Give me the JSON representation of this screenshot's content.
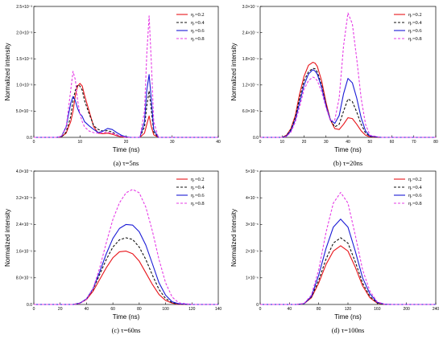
{
  "chart_data": [
    {
      "type": "line",
      "caption": "(a) τ=5ns",
      "xlabel": "Time (ns)",
      "ylabel": "Normalized intensity",
      "xlim": [
        0,
        40
      ],
      "ylim": [
        0,
        0.0025
      ],
      "xticks": [
        "0",
        "10",
        "20",
        "30",
        "40"
      ],
      "yticks": [
        "0.0",
        "5.0×10⁻⁴",
        "1.0×10⁻³",
        "1.5×10⁻³",
        "2.0×10⁻³",
        "2.5×10⁻³"
      ],
      "legend_position": "top-right",
      "series": [
        {
          "name": "ηᵣ=0.2",
          "color": "#e8141a",
          "dash": "solid",
          "x": [
            0,
            5,
            6,
            7,
            8,
            8.5,
            9,
            9.5,
            10,
            10.5,
            11,
            12,
            13,
            14,
            15,
            16,
            17,
            18,
            19,
            20,
            21,
            22,
            23,
            24,
            24.5,
            25,
            25.5,
            26,
            27,
            28,
            30,
            40
          ],
          "y": [
            0,
            0,
            1e-05,
            8e-05,
            0.0003,
            0.0005,
            0.0008,
            0.00098,
            0.00103,
            0.00098,
            0.0008,
            0.0005,
            0.0002,
            8e-05,
            7e-05,
            8e-05,
            6e-05,
            3e-05,
            1e-05,
            0,
            0,
            0,
            0,
            8e-05,
            0.00025,
            0.00041,
            0.0002,
            5e-05,
            0,
            0,
            0,
            0
          ]
        },
        {
          "name": "ηᵣ=0.4",
          "color": "#111111",
          "dash": "dashed",
          "x": [
            0,
            5,
            6,
            7,
            8,
            8.5,
            9,
            9.5,
            10,
            10.5,
            11,
            12,
            13,
            14,
            15,
            16,
            17,
            18,
            19,
            20,
            21,
            22,
            23,
            24,
            24.5,
            25,
            25.5,
            26,
            27,
            28,
            30,
            40
          ],
          "y": [
            0,
            0,
            1e-05,
            0.0001,
            0.0004,
            0.0007,
            0.0009,
            0.001,
            0.00098,
            0.0009,
            0.0007,
            0.00045,
            0.00022,
            0.00015,
            0.00012,
            0.00013,
            0.0001,
            5e-05,
            2e-05,
            0,
            0,
            0,
            0,
            0.0002,
            0.0006,
            0.00089,
            0.0005,
            0.0001,
            0,
            0,
            0,
            0
          ]
        },
        {
          "name": "ηᵣ=0.6",
          "color": "#1a1ad6",
          "dash": "solid",
          "x": [
            0,
            5,
            6,
            7,
            8,
            8.5,
            9,
            9.5,
            10,
            10.5,
            11,
            12,
            13,
            14,
            15,
            16,
            17,
            18,
            19,
            20,
            21,
            22,
            23,
            24,
            24.5,
            25,
            25.5,
            26,
            27,
            28,
            30,
            40
          ],
          "y": [
            0,
            0,
            2e-05,
            0.0002,
            0.00065,
            0.00078,
            0.0007,
            0.00055,
            0.00045,
            0.0004,
            0.0003,
            0.00022,
            0.00015,
            9e-05,
            0.00012,
            0.00017,
            0.00015,
            9e-05,
            4e-05,
            1e-05,
            0,
            0,
            0,
            0.0003,
            0.0009,
            0.0012,
            0.0007,
            0.00015,
            0,
            0,
            0,
            0
          ]
        },
        {
          "name": "ηᵣ=0.8",
          "color": "#e63ce6",
          "dash": "dashed",
          "x": [
            0,
            5,
            6,
            7,
            8,
            8.5,
            9,
            9.5,
            10,
            10.5,
            11,
            12,
            13,
            14,
            15,
            16,
            17,
            18,
            19,
            20,
            21,
            22,
            23,
            24,
            24.5,
            25,
            25.5,
            26,
            27,
            28,
            30,
            40
          ],
          "y": [
            0,
            0,
            2e-05,
            0.00018,
            0.0009,
            0.00126,
            0.0011,
            0.0007,
            0.00045,
            0.0003,
            0.0002,
            0.00012,
            9e-05,
            8e-05,
            9e-05,
            0.0001,
            8e-05,
            5e-05,
            2e-05,
            0,
            0,
            0,
            0,
            0.0005,
            0.0016,
            0.00232,
            0.0014,
            0.0003,
            0,
            0,
            0,
            0
          ]
        }
      ]
    },
    {
      "type": "line",
      "caption": "(b) τ=20ns",
      "xlabel": "Time (ns)",
      "ylabel": "Normalized intensity",
      "xlim": [
        0,
        80
      ],
      "ylim": [
        0,
        0.0003
      ],
      "xticks": [
        "0",
        "10",
        "20",
        "30",
        "40",
        "50",
        "60",
        "70",
        "80"
      ],
      "yticks": [
        "0.0",
        "6.0×10⁻⁵",
        "1.2×10⁻⁴",
        "1.8×10⁻⁴",
        "2.4×10⁻⁴",
        "3.0×10⁻⁴"
      ],
      "legend_position": "top-right",
      "series": [
        {
          "name": "ηᵣ=0.2",
          "color": "#e8141a",
          "dash": "solid",
          "x": [
            0,
            10,
            12,
            14,
            16,
            18,
            20,
            22,
            24,
            25,
            26,
            28,
            30,
            32,
            34,
            36,
            38,
            40,
            42,
            44,
            46,
            48,
            50,
            55,
            60,
            80
          ],
          "y": [
            0,
            0,
            5e-06,
            2e-05,
            5e-05,
            0.0001,
            0.00014,
            0.000165,
            0.000172,
            0.00017,
            0.000163,
            0.00013,
            8e-05,
            4e-05,
            2e-05,
            1.8e-05,
            3e-05,
            4.5e-05,
            4.3e-05,
            3e-05,
            1.5e-05,
            5e-06,
            1e-06,
            0,
            0,
            0
          ]
        },
        {
          "name": "ηᵣ=0.4",
          "color": "#111111",
          "dash": "dashed",
          "x": [
            0,
            10,
            12,
            14,
            16,
            18,
            20,
            22,
            24,
            25,
            26,
            28,
            30,
            32,
            34,
            36,
            38,
            40,
            42,
            44,
            46,
            48,
            50,
            55,
            60,
            80
          ],
          "y": [
            0,
            0,
            4e-06,
            1.8e-05,
            4.5e-05,
            9e-05,
            0.00013,
            0.00015,
            0.000158,
            0.000157,
            0.00015,
            0.00012,
            7.5e-05,
            4e-05,
            2.4e-05,
            3e-05,
            6e-05,
            8.8e-05,
            8.2e-05,
            5.8e-05,
            3e-05,
            1e-05,
            2e-06,
            0,
            0,
            0
          ]
        },
        {
          "name": "ηᵣ=0.6",
          "color": "#1a1ad6",
          "dash": "solid",
          "x": [
            0,
            10,
            12,
            14,
            16,
            18,
            20,
            22,
            24,
            25,
            26,
            28,
            30,
            32,
            34,
            36,
            38,
            40,
            42,
            44,
            46,
            48,
            50,
            55,
            60,
            80
          ],
          "y": [
            0,
            0,
            3e-06,
            1.5e-05,
            4e-05,
            8e-05,
            0.00012,
            0.000145,
            0.000155,
            0.000152,
            0.000145,
            0.000115,
            7.2e-05,
            4e-05,
            3.2e-05,
            5e-05,
            0.0001,
            0.000135,
            0.000125,
            9e-05,
            4.5e-05,
            1.5e-05,
            3e-06,
            0,
            0,
            0
          ]
        },
        {
          "name": "ηᵣ=0.8",
          "color": "#e63ce6",
          "dash": "dashed",
          "x": [
            0,
            10,
            12,
            14,
            16,
            18,
            20,
            22,
            24,
            25,
            26,
            28,
            30,
            32,
            34,
            36,
            38,
            40,
            42,
            44,
            46,
            48,
            50,
            55,
            60,
            80
          ],
          "y": [
            0,
            0,
            2e-06,
            1.2e-05,
            3.5e-05,
            7e-05,
            0.00011,
            0.00013,
            0.000138,
            0.000136,
            0.00013,
            0.000105,
            6.8e-05,
            3.8e-05,
            4e-05,
            9e-05,
            0.00021,
            0.000285,
            0.00026,
            0.00018,
            9e-05,
            3e-05,
            5e-06,
            0,
            0,
            0
          ]
        }
      ]
    },
    {
      "type": "line",
      "caption": "(c) τ=60ns",
      "xlabel": "Time (ns)",
      "ylabel": "Normalized intensity",
      "xlim": [
        0,
        140
      ],
      "ylim": [
        0,
        4e-05
      ],
      "xticks": [
        "0",
        "20",
        "40",
        "60",
        "80",
        "100",
        "120",
        "140"
      ],
      "yticks": [
        "0.0",
        "8.0×10⁻⁶",
        "1.6×10⁻⁵",
        "2.4×10⁻⁵",
        "3.2×10⁻⁵",
        "4.0×10⁻⁵"
      ],
      "legend_position": "top-right",
      "series": [
        {
          "name": "ηᵣ=0.2",
          "color": "#e8141a",
          "dash": "solid",
          "x": [
            0,
            30,
            35,
            40,
            45,
            50,
            55,
            60,
            65,
            70,
            75,
            80,
            85,
            90,
            95,
            100,
            105,
            110,
            120,
            140
          ],
          "y": [
            0,
            0,
            4e-07,
            1.5e-06,
            4e-06,
            7.5e-06,
            1.1e-05,
            1.4e-05,
            1.58e-05,
            1.6e-05,
            1.52e-05,
            1.3e-05,
            9.5e-06,
            6e-06,
            3e-06,
            1.2e-06,
            4e-07,
            0,
            0,
            0
          ]
        },
        {
          "name": "ηᵣ=0.4",
          "color": "#111111",
          "dash": "dashed",
          "x": [
            0,
            30,
            35,
            40,
            45,
            50,
            55,
            60,
            65,
            70,
            75,
            80,
            85,
            90,
            95,
            100,
            105,
            110,
            120,
            140
          ],
          "y": [
            0,
            0,
            4e-07,
            1.6e-06,
            4.5e-06,
            9e-06,
            1.35e-05,
            1.72e-05,
            1.94e-05,
            2e-05,
            1.95e-05,
            1.72e-05,
            1.35e-05,
            8.8e-06,
            4.5e-06,
            1.8e-06,
            5e-07,
            1e-07,
            0,
            0
          ]
        },
        {
          "name": "ηᵣ=0.6",
          "color": "#1a1ad6",
          "dash": "solid",
          "x": [
            0,
            30,
            35,
            40,
            45,
            50,
            55,
            60,
            65,
            70,
            75,
            80,
            85,
            90,
            95,
            100,
            105,
            110,
            120,
            140
          ],
          "y": [
            0,
            0,
            4e-07,
            1.7e-06,
            4.8e-06,
            9.8e-06,
            1.52e-05,
            1.98e-05,
            2.28e-05,
            2.4e-05,
            2.38e-05,
            2.18e-05,
            1.78e-05,
            1.22e-05,
            6.5e-06,
            2.8e-06,
            8e-07,
            2e-07,
            0,
            0
          ]
        },
        {
          "name": "ηᵣ=0.8",
          "color": "#e63ce6",
          "dash": "dashed",
          "x": [
            0,
            30,
            35,
            40,
            45,
            50,
            55,
            60,
            65,
            70,
            75,
            80,
            85,
            90,
            95,
            100,
            105,
            110,
            120,
            140
          ],
          "y": [
            0,
            0,
            3e-07,
            1.6e-06,
            4.8e-06,
            1.1e-05,
            1.85e-05,
            2.55e-05,
            3.05e-05,
            3.35e-05,
            3.45e-05,
            3.35e-05,
            2.92e-05,
            2.2e-05,
            1.35e-05,
            6.5e-06,
            2.2e-06,
            5e-07,
            0,
            0
          ]
        }
      ]
    },
    {
      "type": "line",
      "caption": "(d) τ=100ns",
      "xlabel": "Time (ns)",
      "ylabel": "Normalized intensity",
      "xlim": [
        0,
        240
      ],
      "ylim": [
        0,
        5e-06
      ],
      "xticks": [
        "0",
        "40",
        "80",
        "120",
        "160",
        "200",
        "240"
      ],
      "yticks": [
        "0",
        "1×10⁻⁶",
        "2×10⁻⁶",
        "3×10⁻⁶",
        "4×10⁻⁶",
        "5×10⁻⁶"
      ],
      "legend_position": "top-right",
      "series": [
        {
          "name": "ηᵣ=0.2",
          "color": "#e8141a",
          "dash": "solid",
          "x": [
            0,
            50,
            60,
            70,
            80,
            90,
            100,
            110,
            120,
            130,
            140,
            150,
            160,
            170,
            180,
            240
          ],
          "y": [
            0,
            0,
            3e-08,
            2.5e-07,
            8e-07,
            1.5e-06,
            2e-06,
            2.2e-06,
            2e-06,
            1.4e-06,
            7e-07,
            2.5e-07,
            5e-08,
            0,
            0,
            0
          ]
        },
        {
          "name": "ηᵣ=0.4",
          "color": "#111111",
          "dash": "dashed",
          "x": [
            0,
            50,
            60,
            70,
            80,
            90,
            100,
            110,
            120,
            130,
            140,
            150,
            160,
            170,
            180,
            240
          ],
          "y": [
            0,
            0,
            3e-08,
            2.8e-07,
            9e-07,
            1.7e-06,
            2.3e-06,
            2.5e-06,
            2.3e-06,
            1.6e-06,
            8e-07,
            3e-07,
            6e-08,
            0,
            0,
            0
          ]
        },
        {
          "name": "ηᵣ=0.6",
          "color": "#1a1ad6",
          "dash": "solid",
          "x": [
            0,
            50,
            60,
            70,
            80,
            90,
            100,
            110,
            120,
            130,
            140,
            150,
            160,
            170,
            180,
            240
          ],
          "y": [
            0,
            0,
            3e-08,
            3e-07,
            1.1e-06,
            2.1e-06,
            2.9e-06,
            3.2e-06,
            2.9e-06,
            2e-06,
            1e-06,
            4e-07,
            8e-08,
            1e-08,
            0,
            0
          ]
        },
        {
          "name": "ηᵣ=0.8",
          "color": "#e63ce6",
          "dash": "dashed",
          "x": [
            0,
            50,
            60,
            70,
            80,
            90,
            100,
            110,
            120,
            130,
            140,
            150,
            160,
            170,
            180,
            240
          ],
          "y": [
            0,
            0,
            4e-08,
            3.5e-07,
            1.3e-06,
            2.7e-06,
            3.8e-06,
            4.2e-06,
            3.8e-06,
            2.6e-06,
            1.3e-06,
            5e-07,
            1e-07,
            1e-08,
            0,
            0
          ]
        }
      ]
    }
  ]
}
